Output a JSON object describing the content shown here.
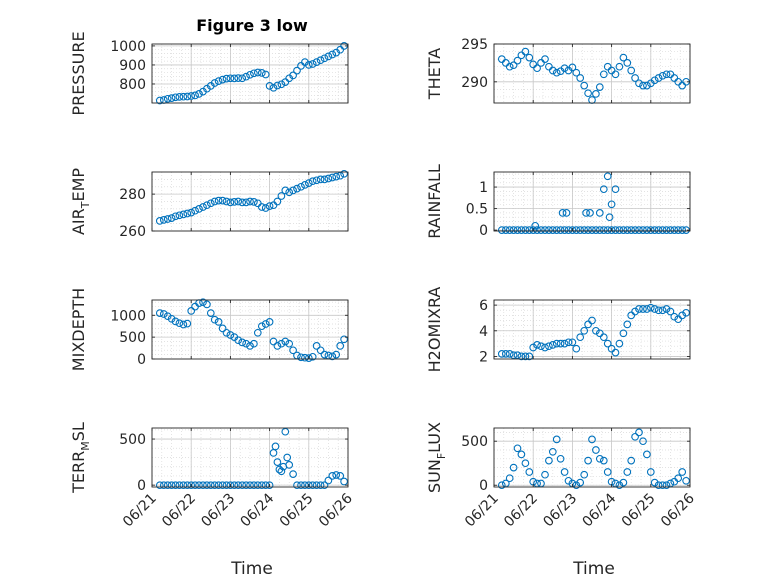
{
  "title": "Figure 3 low",
  "xlabel": "Time",
  "chart_data": [
    {
      "type": "scatter",
      "ylabel_main": "PRESSURE",
      "ylabel_sub": "",
      "ylim": [
        700,
        1010
      ],
      "yticks": [
        800,
        900,
        1000
      ],
      "ytick_labels": [
        "800",
        "900",
        "1000"
      ],
      "x": [
        0.2,
        0.3,
        0.4,
        0.5,
        0.6,
        0.7,
        0.8,
        0.9,
        1.0,
        1.1,
        1.2,
        1.3,
        1.4,
        1.5,
        1.6,
        1.7,
        1.8,
        1.9,
        2.0,
        2.1,
        2.2,
        2.3,
        2.4,
        2.5,
        2.6,
        2.7,
        2.8,
        2.9,
        3.0,
        3.1,
        3.2,
        3.3,
        3.4,
        3.5,
        3.6,
        3.7,
        3.8,
        3.9,
        4.0,
        4.1,
        4.2,
        4.3,
        4.4,
        4.5,
        4.6,
        4.7,
        4.8,
        4.9
      ],
      "y": [
        713,
        716,
        722,
        726,
        730,
        732,
        733,
        734,
        737,
        740,
        748,
        760,
        775,
        790,
        805,
        815,
        823,
        828,
        830,
        829,
        831,
        830,
        838,
        848,
        856,
        860,
        858,
        850,
        790,
        780,
        792,
        798,
        810,
        830,
        845,
        870,
        895,
        915,
        900,
        905,
        915,
        925,
        935,
        945,
        955,
        965,
        980,
        1000
      ]
    },
    {
      "type": "scatter",
      "ylabel_main": "THETA",
      "ylabel_sub": "",
      "ylim": [
        287.2,
        295
      ],
      "yticks": [
        290,
        295
      ],
      "ytick_labels": [
        "290",
        "295"
      ],
      "x": [
        0.2,
        0.3,
        0.4,
        0.5,
        0.6,
        0.7,
        0.8,
        0.9,
        1.0,
        1.1,
        1.2,
        1.3,
        1.4,
        1.5,
        1.6,
        1.7,
        1.8,
        1.9,
        2.0,
        2.1,
        2.2,
        2.3,
        2.4,
        2.5,
        2.6,
        2.7,
        2.8,
        2.9,
        3.0,
        3.1,
        3.2,
        3.3,
        3.4,
        3.5,
        3.6,
        3.7,
        3.8,
        3.9,
        4.0,
        4.1,
        4.2,
        4.3,
        4.4,
        4.5,
        4.6,
        4.7,
        4.8,
        4.9
      ],
      "y": [
        293,
        292.5,
        292,
        292.2,
        292.8,
        293.5,
        294,
        293.2,
        292.3,
        291.8,
        292.5,
        293,
        292,
        291.5,
        291.2,
        291.4,
        291.8,
        291.5,
        291.9,
        291.2,
        290.5,
        289.5,
        288.5,
        287.6,
        288.4,
        289.3,
        291,
        292,
        291.5,
        291,
        292,
        293.2,
        292.5,
        291.5,
        290.5,
        289.8,
        289.5,
        289.5,
        289.8,
        290.2,
        290.5,
        290.8,
        291,
        291,
        290.5,
        290,
        289.5,
        290
      ]
    },
    {
      "type": "scatter",
      "ylabel_main": "AIR",
      "ylabel_sub": "T",
      "ylabel_tail": "EMP",
      "ylim": [
        260,
        292
      ],
      "yticks": [
        260,
        280
      ],
      "ytick_labels": [
        "260",
        "280"
      ],
      "x": [
        0.2,
        0.3,
        0.4,
        0.5,
        0.6,
        0.7,
        0.8,
        0.9,
        1.0,
        1.1,
        1.2,
        1.3,
        1.4,
        1.5,
        1.6,
        1.7,
        1.8,
        1.9,
        2.0,
        2.1,
        2.2,
        2.3,
        2.4,
        2.5,
        2.6,
        2.7,
        2.8,
        2.9,
        3.0,
        3.1,
        3.2,
        3.3,
        3.4,
        3.5,
        3.6,
        3.7,
        3.8,
        3.9,
        4.0,
        4.1,
        4.2,
        4.3,
        4.4,
        4.5,
        4.6,
        4.7,
        4.8,
        4.9
      ],
      "y": [
        265.5,
        266,
        266.5,
        267,
        268,
        268.5,
        269,
        269.5,
        270,
        271,
        272,
        273,
        274,
        275,
        276,
        276.5,
        276.5,
        276,
        275.5,
        275.8,
        276,
        275.5,
        275.5,
        276,
        275.8,
        275,
        273,
        272.5,
        273.5,
        274,
        276,
        279,
        282,
        281,
        282,
        283,
        284,
        285,
        286,
        287,
        287.5,
        288,
        288,
        288.5,
        289,
        289.5,
        290,
        291
      ]
    },
    {
      "type": "scatter",
      "ylabel_main": "RAINFALL",
      "ylabel_sub": "",
      "ylim": [
        -0.02,
        1.35
      ],
      "yticks": [
        0,
        0.5,
        1
      ],
      "ytick_labels": [
        "0",
        "0.5",
        "1"
      ],
      "x": [
        0.2,
        0.3,
        0.4,
        0.5,
        0.6,
        0.7,
        0.8,
        0.9,
        1.0,
        1.1,
        1.2,
        1.3,
        1.4,
        1.5,
        1.6,
        1.7,
        1.8,
        1.9,
        2.0,
        2.1,
        2.2,
        2.3,
        2.4,
        2.5,
        2.6,
        2.7,
        2.8,
        2.9,
        3.0,
        3.1,
        3.2,
        3.3,
        3.4,
        3.5,
        3.6,
        3.7,
        3.8,
        3.9,
        4.0,
        4.1,
        4.2,
        4.3,
        4.4,
        4.5,
        4.6,
        4.7,
        4.8,
        4.9,
        1.05,
        1.75,
        1.85,
        2.35,
        2.45,
        2.7,
        2.8,
        2.9,
        2.95,
        3.0,
        3.1
      ],
      "y": [
        0,
        0,
        0,
        0,
        0,
        0,
        0,
        0,
        0,
        0,
        0,
        0,
        0,
        0,
        0,
        0,
        0,
        0,
        0,
        0,
        0,
        0,
        0,
        0,
        0,
        0,
        0,
        0,
        0,
        0,
        0,
        0,
        0,
        0,
        0,
        0,
        0,
        0,
        0,
        0,
        0,
        0,
        0,
        0,
        0,
        0,
        0,
        0,
        0.1,
        0.4,
        0.4,
        0.4,
        0.4,
        0.4,
        0.95,
        1.25,
        0.3,
        0.6,
        0.95
      ]
    },
    {
      "type": "scatter",
      "ylabel_main": "MIXDEPTH",
      "ylabel_sub": "",
      "ylim": [
        0,
        1350
      ],
      "yticks": [
        0,
        500,
        1000
      ],
      "ytick_labels": [
        "0",
        "500",
        "1000"
      ],
      "x": [
        0.2,
        0.3,
        0.4,
        0.5,
        0.6,
        0.7,
        0.8,
        0.9,
        1.0,
        1.1,
        1.2,
        1.3,
        1.4,
        1.5,
        1.6,
        1.7,
        1.8,
        1.9,
        2.0,
        2.1,
        2.2,
        2.3,
        2.4,
        2.5,
        2.6,
        2.7,
        2.8,
        2.9,
        3.0,
        3.1,
        3.2,
        3.3,
        3.4,
        3.5,
        3.6,
        3.7,
        3.8,
        3.9,
        4.0,
        4.1,
        4.2,
        4.3,
        4.4,
        4.5,
        4.6,
        4.7,
        4.8,
        4.9
      ],
      "y": [
        1050,
        1030,
        980,
        920,
        860,
        820,
        790,
        810,
        1100,
        1200,
        1280,
        1300,
        1250,
        1050,
        900,
        850,
        700,
        600,
        550,
        500,
        430,
        380,
        350,
        300,
        350,
        600,
        750,
        800,
        850,
        400,
        300,
        350,
        400,
        350,
        200,
        80,
        40,
        30,
        20,
        50,
        300,
        200,
        100,
        80,
        60,
        100,
        300,
        450
      ]
    },
    {
      "type": "scatter",
      "ylabel_main": "H2OMIXRA",
      "ylabel_sub": "",
      "ylim": [
        1.8,
        6.4
      ],
      "yticks": [
        2,
        4,
        6
      ],
      "ytick_labels": [
        "2",
        "4",
        "6"
      ],
      "x": [
        0.2,
        0.3,
        0.4,
        0.5,
        0.6,
        0.7,
        0.8,
        0.9,
        1.0,
        1.1,
        1.2,
        1.3,
        1.4,
        1.5,
        1.6,
        1.7,
        1.8,
        1.9,
        2.0,
        2.1,
        2.2,
        2.3,
        2.4,
        2.5,
        2.6,
        2.7,
        2.8,
        2.9,
        3.0,
        3.1,
        3.2,
        3.3,
        3.4,
        3.5,
        3.6,
        3.7,
        3.8,
        3.9,
        4.0,
        4.1,
        4.2,
        4.3,
        4.4,
        4.5,
        4.6,
        4.7,
        4.8,
        4.9
      ],
      "y": [
        2.2,
        2.2,
        2.2,
        2.1,
        2.1,
        2.0,
        2.0,
        2.0,
        2.7,
        2.9,
        2.8,
        2.7,
        2.8,
        2.9,
        3.0,
        3.0,
        3.0,
        3.1,
        3.1,
        2.6,
        3.5,
        4.0,
        4.5,
        4.8,
        4.0,
        3.8,
        3.5,
        3.0,
        2.6,
        2.3,
        3.0,
        3.8,
        4.5,
        5.2,
        5.5,
        5.7,
        5.7,
        5.7,
        5.8,
        5.7,
        5.6,
        5.6,
        5.7,
        5.5,
        5.1,
        4.9,
        5.2,
        5.4
      ]
    },
    {
      "type": "scatter",
      "ylabel_main": "TERR",
      "ylabel_sub": "M",
      "ylabel_tail": "SL",
      "ylim": [
        -20,
        620
      ],
      "yticks": [
        0,
        500
      ],
      "ytick_labels": [
        "0",
        "500"
      ],
      "x": [
        0.2,
        0.3,
        0.4,
        0.5,
        0.6,
        0.7,
        0.8,
        0.9,
        1.0,
        1.1,
        1.2,
        1.3,
        1.4,
        1.5,
        1.6,
        1.7,
        1.8,
        1.9,
        2.0,
        2.1,
        2.2,
        2.3,
        2.4,
        2.5,
        2.6,
        2.7,
        2.8,
        2.9,
        3.0,
        3.1,
        3.15,
        3.2,
        3.25,
        3.3,
        3.35,
        3.4,
        3.45,
        3.5,
        3.6,
        3.7,
        3.8,
        3.9,
        4.0,
        4.1,
        4.2,
        4.3,
        4.4,
        4.5,
        4.6,
        4.7,
        4.8,
        4.9
      ],
      "y": [
        0,
        0,
        0,
        0,
        0,
        0,
        0,
        0,
        0,
        0,
        0,
        0,
        0,
        0,
        0,
        0,
        0,
        0,
        0,
        0,
        0,
        0,
        0,
        0,
        0,
        0,
        0,
        0,
        0,
        350,
        420,
        250,
        170,
        150,
        200,
        580,
        300,
        220,
        120,
        0,
        0,
        0,
        0,
        0,
        0,
        0,
        0,
        50,
        100,
        110,
        100,
        40
      ]
    },
    {
      "type": "scatter",
      "ylabel_main": "SUN",
      "ylabel_sub": "F",
      "ylabel_tail": "LUX",
      "ylim": [
        -20,
        650
      ],
      "yticks": [
        0,
        500
      ],
      "ytick_labels": [
        "0",
        "500"
      ],
      "x": [
        0.2,
        0.3,
        0.4,
        0.5,
        0.6,
        0.7,
        0.8,
        0.9,
        1.0,
        1.1,
        1.2,
        1.3,
        1.4,
        1.5,
        1.6,
        1.7,
        1.8,
        1.9,
        2.0,
        2.1,
        2.2,
        2.3,
        2.4,
        2.5,
        2.6,
        2.7,
        2.8,
        2.9,
        3.0,
        3.1,
        3.2,
        3.3,
        3.4,
        3.5,
        3.6,
        3.7,
        3.8,
        3.9,
        4.0,
        4.1,
        4.2,
        4.3,
        4.4,
        4.5,
        4.6,
        4.7,
        4.8,
        4.9
      ],
      "y": [
        0,
        20,
        80,
        200,
        420,
        350,
        250,
        150,
        40,
        20,
        20,
        120,
        280,
        380,
        520,
        300,
        150,
        50,
        20,
        0,
        30,
        120,
        280,
        520,
        400,
        300,
        280,
        150,
        40,
        20,
        0,
        30,
        150,
        280,
        550,
        600,
        500,
        350,
        150,
        30,
        0,
        0,
        0,
        20,
        40,
        80,
        150,
        50
      ]
    }
  ],
  "x_ticks": [
    "06/21",
    "06/22",
    "06/23",
    "06/24",
    "06/25",
    "06/26"
  ],
  "x_range": [
    0,
    5
  ],
  "style": {
    "marker_color": "#0072BD",
    "axis_color": "#262626",
    "grid_color": "#d9d9d9"
  }
}
